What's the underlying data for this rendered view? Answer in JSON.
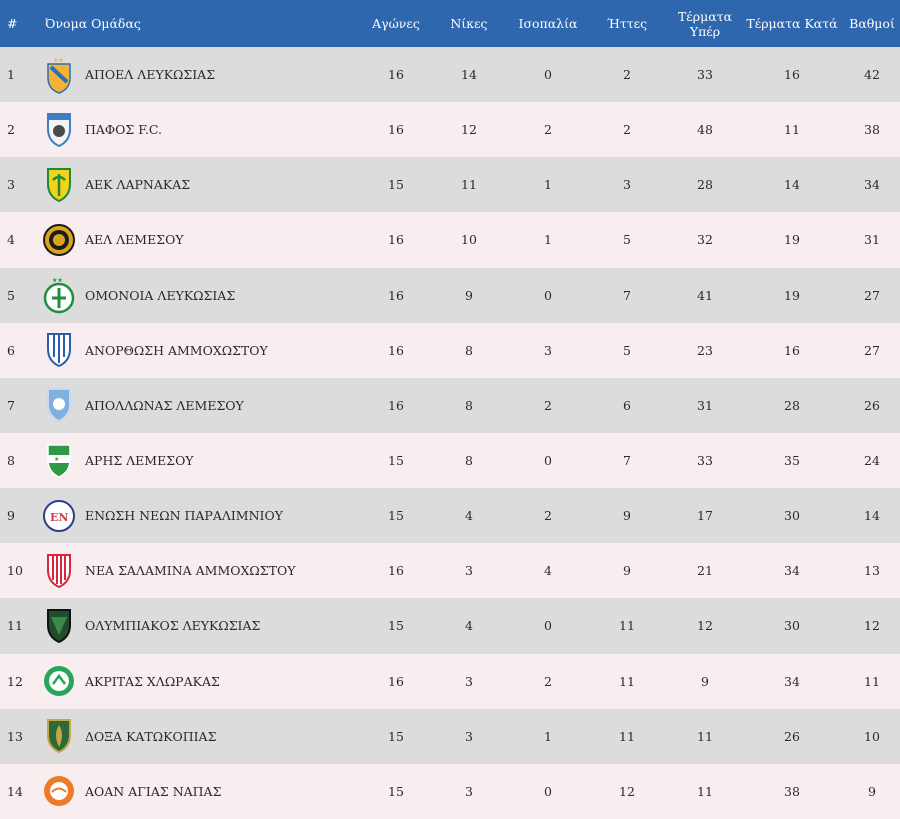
{
  "header": {
    "pos": "#",
    "team": "Όνομα Ομάδας",
    "played": "Αγώνες",
    "wins": "Νίκες",
    "draws": "Ισοπαλία",
    "losses": "Ήττες",
    "gf": "Τέρματα Υπέρ",
    "ga": "Τέρματα Κατά",
    "pts": "Βαθμοί"
  },
  "rows": [
    {
      "pos": "1",
      "team": "ΑΠΟΕΛ ΛΕΥΚΩΣΙΑΣ",
      "played": "16",
      "wins": "14",
      "draws": "0",
      "losses": "2",
      "gf": "33",
      "ga": "16",
      "pts": "42",
      "crest_icon": "apoel-crest-icon",
      "crest_colors": [
        "#f2b233",
        "#2f6db5"
      ]
    },
    {
      "pos": "2",
      "team": "ΠΑΦΟΣ F.C.",
      "played": "16",
      "wins": "12",
      "draws": "2",
      "losses": "2",
      "gf": "48",
      "ga": "11",
      "pts": "38",
      "crest_icon": "pafos-crest-icon",
      "crest_colors": [
        "#3c7fc6",
        "#f4f4f4"
      ]
    },
    {
      "pos": "3",
      "team": "ΑΕΚ ΛΑΡΝΑΚΑΣ",
      "played": "15",
      "wins": "11",
      "draws": "1",
      "losses": "3",
      "gf": "28",
      "ga": "14",
      "pts": "34",
      "crest_icon": "aek-crest-icon",
      "crest_colors": [
        "#f3d21c",
        "#1d8a3a"
      ]
    },
    {
      "pos": "4",
      "team": "ΑΕΛ ΛΕΜΕΣΟΥ",
      "played": "16",
      "wins": "10",
      "draws": "1",
      "losses": "5",
      "gf": "32",
      "ga": "19",
      "pts": "31",
      "crest_icon": "ael-crest-icon",
      "crest_colors": [
        "#d9a521",
        "#1b1b1b"
      ]
    },
    {
      "pos": "5",
      "team": "ΟΜΟΝΟΙΑ ΛΕΥΚΩΣΙΑΣ",
      "played": "16",
      "wins": "9",
      "draws": "0",
      "losses": "7",
      "gf": "41",
      "ga": "19",
      "pts": "27",
      "crest_icon": "omonoia-crest-icon",
      "crest_colors": [
        "#1e8f3e",
        "#ffffff"
      ]
    },
    {
      "pos": "6",
      "team": "ΑΝΟΡΘΩΣΗ ΑΜΜΟΧΩΣΤΟΥ",
      "played": "16",
      "wins": "8",
      "draws": "3",
      "losses": "5",
      "gf": "23",
      "ga": "16",
      "pts": "27",
      "crest_icon": "anorthosi-crest-icon",
      "crest_colors": [
        "#2a5fa8",
        "#ffffff"
      ]
    },
    {
      "pos": "7",
      "team": "ΑΠΟΛΛΩΝΑΣ ΛΕΜΕΣΟΥ",
      "played": "16",
      "wins": "8",
      "draws": "2",
      "losses": "6",
      "gf": "31",
      "ga": "28",
      "pts": "26",
      "crest_icon": "apollon-crest-icon",
      "crest_colors": [
        "#7fb0e0",
        "#ffffff"
      ]
    },
    {
      "pos": "8",
      "team": "ΑΡΗΣ ΛΕΜΕΣΟΥ",
      "played": "15",
      "wins": "8",
      "draws": "0",
      "losses": "7",
      "gf": "33",
      "ga": "35",
      "pts": "24",
      "crest_icon": "aris-crest-icon",
      "crest_colors": [
        "#2e9a48",
        "#ffffff"
      ]
    },
    {
      "pos": "9",
      "team": "ΕΝΩΣΗ ΝΕΩΝ ΠΑΡΑΛΙΜΝΙΟΥ",
      "played": "15",
      "wins": "4",
      "draws": "2",
      "losses": "9",
      "gf": "17",
      "ga": "30",
      "pts": "14",
      "crest_icon": "enp-crest-icon",
      "crest_colors": [
        "#d23c4e",
        "#2c3e8a"
      ]
    },
    {
      "pos": "10",
      "team": "ΝΕΑ ΣΑΛΑΜΙΝΑ ΑΜΜΟΧΩΣΤΟΥ",
      "played": "16",
      "wins": "3",
      "draws": "4",
      "losses": "9",
      "gf": "21",
      "ga": "34",
      "pts": "13",
      "crest_icon": "nea-salamina-crest-icon",
      "crest_colors": [
        "#d7263d",
        "#ffffff"
      ]
    },
    {
      "pos": "11",
      "team": "ΟΛΥΜΠΙΑΚΟΣ ΛΕΥΚΩΣΙΑΣ",
      "played": "15",
      "wins": "4",
      "draws": "0",
      "losses": "11",
      "gf": "12",
      "ga": "30",
      "pts": "12",
      "crest_icon": "olympiakos-crest-icon",
      "crest_colors": [
        "#1f4d2e",
        "#111111"
      ]
    },
    {
      "pos": "12",
      "team": "ΑΚΡΙΤΑΣ ΧΛΩΡΑΚΑΣ",
      "played": "16",
      "wins": "3",
      "draws": "2",
      "losses": "11",
      "gf": "9",
      "ga": "34",
      "pts": "11",
      "crest_icon": "akritas-crest-icon",
      "crest_colors": [
        "#27a55a",
        "#ffffff"
      ]
    },
    {
      "pos": "13",
      "team": "ΔΟΞΑ ΚΑΤΩΚΟΠΙΑΣ",
      "played": "15",
      "wins": "3",
      "draws": "1",
      "losses": "11",
      "gf": "11",
      "ga": "26",
      "pts": "10",
      "crest_icon": "doxa-crest-icon",
      "crest_colors": [
        "#2b6b3a",
        "#c9a44a"
      ]
    },
    {
      "pos": "14",
      "team": "ΑΟΑΝ ΑΓΙΑΣ ΝΑΠΑΣ",
      "played": "15",
      "wins": "3",
      "draws": "0",
      "losses": "12",
      "gf": "11",
      "ga": "38",
      "pts": "9",
      "crest_icon": "aoan-crest-icon",
      "crest_colors": [
        "#ee7b2a",
        "#ffffff"
      ]
    }
  ],
  "theme": {
    "header_bg": "#2f67ae",
    "row_odd": "#dcdcdc",
    "row_even": "#f8eef0"
  }
}
